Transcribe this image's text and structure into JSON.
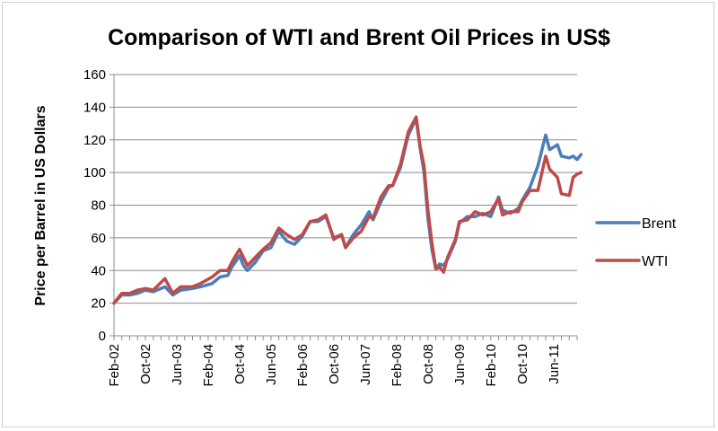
{
  "chart_data": {
    "type": "line",
    "title": "Comparison of WTI and Brent Oil Prices in US$",
    "xlabel": "",
    "ylabel": "Price per Barrel in US Dollars",
    "ylim": [
      0,
      160
    ],
    "yticks": [
      "0",
      "20",
      "40",
      "60",
      "80",
      "100",
      "120",
      "140",
      "160"
    ],
    "xticks": [
      "Feb-02",
      "Oct-02",
      "Jun-03",
      "Feb-04",
      "Oct-04",
      "Jun-05",
      "Feb-06",
      "Oct-06",
      "Jun-07",
      "Feb-08",
      "Oct-08",
      "Jun-09",
      "Feb-10",
      "Oct-10",
      "Jun-11"
    ],
    "x_start": "2002-02",
    "x_end": "2011-12",
    "grid": true,
    "legend": "right",
    "series": [
      {
        "name": "Brent",
        "color": "#4a7ebb",
        "points": [
          [
            "2002-02",
            20
          ],
          [
            "2002-04",
            25
          ],
          [
            "2002-06",
            25
          ],
          [
            "2002-08",
            26
          ],
          [
            "2002-10",
            28
          ],
          [
            "2002-12",
            27
          ],
          [
            "2003-03",
            30
          ],
          [
            "2003-05",
            25
          ],
          [
            "2003-07",
            28
          ],
          [
            "2003-10",
            29
          ],
          [
            "2003-12",
            30
          ],
          [
            "2004-03",
            32
          ],
          [
            "2004-05",
            36
          ],
          [
            "2004-07",
            37
          ],
          [
            "2004-08",
            42
          ],
          [
            "2004-10",
            49
          ],
          [
            "2004-11",
            43
          ],
          [
            "2004-12",
            40
          ],
          [
            "2005-02",
            45
          ],
          [
            "2005-04",
            52
          ],
          [
            "2005-06",
            54
          ],
          [
            "2005-08",
            64
          ],
          [
            "2005-10",
            58
          ],
          [
            "2005-12",
            56
          ],
          [
            "2006-02",
            61
          ],
          [
            "2006-04",
            70
          ],
          [
            "2006-06",
            70
          ],
          [
            "2006-08",
            73
          ],
          [
            "2006-10",
            60
          ],
          [
            "2006-12",
            62
          ],
          [
            "2007-01",
            54
          ],
          [
            "2007-03",
            62
          ],
          [
            "2007-05",
            68
          ],
          [
            "2007-07",
            76
          ],
          [
            "2007-08",
            71
          ],
          [
            "2007-10",
            82
          ],
          [
            "2007-12",
            91
          ],
          [
            "2008-01",
            92
          ],
          [
            "2008-03",
            103
          ],
          [
            "2008-05",
            123
          ],
          [
            "2008-07",
            133
          ],
          [
            "2008-08",
            115
          ],
          [
            "2008-09",
            100
          ],
          [
            "2008-10",
            72
          ],
          [
            "2008-11",
            53
          ],
          [
            "2008-12",
            41
          ],
          [
            "2009-01",
            44
          ],
          [
            "2009-02",
            43
          ],
          [
            "2009-03",
            47
          ],
          [
            "2009-05",
            58
          ],
          [
            "2009-06",
            69
          ],
          [
            "2009-08",
            73
          ],
          [
            "2009-10",
            73
          ],
          [
            "2009-12",
            75
          ],
          [
            "2010-02",
            73
          ],
          [
            "2010-04",
            85
          ],
          [
            "2010-05",
            77
          ],
          [
            "2010-07",
            75
          ],
          [
            "2010-09",
            78
          ],
          [
            "2010-10",
            83
          ],
          [
            "2010-12",
            91
          ],
          [
            "2011-02",
            104
          ],
          [
            "2011-04",
            123
          ],
          [
            "2011-05",
            114
          ],
          [
            "2011-07",
            117
          ],
          [
            "2011-08",
            110
          ],
          [
            "2011-10",
            109
          ],
          [
            "2011-11",
            110
          ],
          [
            "2011-12",
            108
          ],
          [
            "2012-01",
            111
          ]
        ]
      },
      {
        "name": "WTI",
        "color": "#be4b48",
        "points": [
          [
            "2002-02",
            20
          ],
          [
            "2002-04",
            26
          ],
          [
            "2002-06",
            26
          ],
          [
            "2002-08",
            28
          ],
          [
            "2002-10",
            29
          ],
          [
            "2002-12",
            28
          ],
          [
            "2003-03",
            35
          ],
          [
            "2003-05",
            26
          ],
          [
            "2003-07",
            30
          ],
          [
            "2003-10",
            30
          ],
          [
            "2003-12",
            32
          ],
          [
            "2004-03",
            36
          ],
          [
            "2004-05",
            40
          ],
          [
            "2004-07",
            40
          ],
          [
            "2004-08",
            45
          ],
          [
            "2004-10",
            53
          ],
          [
            "2004-11",
            48
          ],
          [
            "2004-12",
            43
          ],
          [
            "2005-02",
            48
          ],
          [
            "2005-04",
            53
          ],
          [
            "2005-06",
            57
          ],
          [
            "2005-08",
            66
          ],
          [
            "2005-10",
            62
          ],
          [
            "2005-12",
            59
          ],
          [
            "2006-02",
            62
          ],
          [
            "2006-04",
            70
          ],
          [
            "2006-06",
            71
          ],
          [
            "2006-08",
            74
          ],
          [
            "2006-10",
            59
          ],
          [
            "2006-12",
            62
          ],
          [
            "2007-01",
            54
          ],
          [
            "2007-03",
            60
          ],
          [
            "2007-05",
            64
          ],
          [
            "2007-07",
            73
          ],
          [
            "2007-08",
            72
          ],
          [
            "2007-10",
            85
          ],
          [
            "2007-12",
            92
          ],
          [
            "2008-01",
            92
          ],
          [
            "2008-03",
            105
          ],
          [
            "2008-05",
            125
          ],
          [
            "2008-07",
            134
          ],
          [
            "2008-08",
            116
          ],
          [
            "2008-09",
            104
          ],
          [
            "2008-10",
            77
          ],
          [
            "2008-11",
            57
          ],
          [
            "2008-12",
            41
          ],
          [
            "2009-01",
            42
          ],
          [
            "2009-02",
            39
          ],
          [
            "2009-03",
            48
          ],
          [
            "2009-05",
            59
          ],
          [
            "2009-06",
            70
          ],
          [
            "2009-08",
            71
          ],
          [
            "2009-10",
            76
          ],
          [
            "2009-12",
            74
          ],
          [
            "2010-02",
            76
          ],
          [
            "2010-04",
            84
          ],
          [
            "2010-05",
            74
          ],
          [
            "2010-07",
            76
          ],
          [
            "2010-09",
            76
          ],
          [
            "2010-10",
            82
          ],
          [
            "2010-12",
            89
          ],
          [
            "2011-02",
            89
          ],
          [
            "2011-04",
            110
          ],
          [
            "2011-05",
            102
          ],
          [
            "2011-07",
            97
          ],
          [
            "2011-08",
            87
          ],
          [
            "2011-10",
            86
          ],
          [
            "2011-11",
            97
          ],
          [
            "2011-12",
            99
          ],
          [
            "2012-01",
            100
          ]
        ]
      }
    ]
  }
}
